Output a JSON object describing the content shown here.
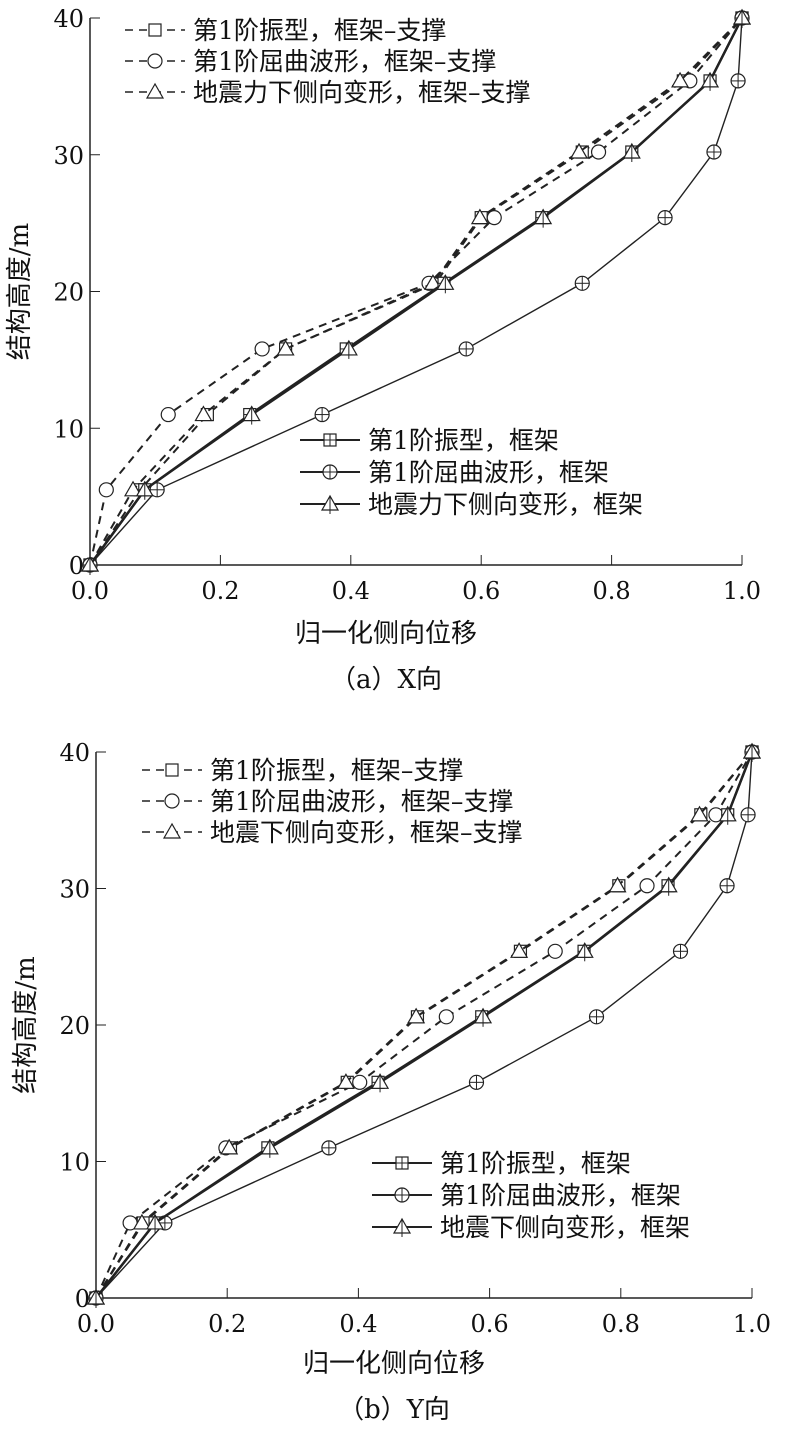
{
  "chart_data": [
    {
      "type": "line",
      "caption": "（a）X向",
      "xlabel": "归一化侧向位移",
      "ylabel": "结构高度/m",
      "xlim": [
        0,
        1
      ],
      "ylim": [
        0,
        40
      ],
      "xticks": [
        "0.0",
        "0.2",
        "0.4",
        "0.6",
        "0.8",
        "1.0"
      ],
      "yticks": [
        "0",
        "10",
        "20",
        "30",
        "40"
      ],
      "heights": [
        0,
        5.5,
        11,
        15.8,
        20.6,
        25.4,
        30.2,
        35.4,
        40
      ],
      "series": [
        {
          "name": "第1阶振型，框架–支撑",
          "marker": "square",
          "style": "dashed",
          "values": [
            0,
            0.077,
            0.18,
            0.3,
            0.53,
            0.6,
            0.755,
            0.91,
            1
          ]
        },
        {
          "name": "第1阶屈曲波形，框架–支撑",
          "marker": "circle",
          "style": "dashed",
          "values": [
            0,
            0.025,
            0.12,
            0.264,
            0.52,
            0.62,
            0.78,
            0.92,
            1
          ]
        },
        {
          "name": "地震力下侧向变形，框架–支撑",
          "marker": "triangle",
          "style": "dashed",
          "values": [
            0,
            0.066,
            0.174,
            0.3,
            0.526,
            0.598,
            0.75,
            0.905,
            1
          ]
        },
        {
          "name": "第1阶振型，框架",
          "marker": "square",
          "style": "solid",
          "values": [
            0,
            0.084,
            0.245,
            0.393,
            0.543,
            0.693,
            0.831,
            0.951,
            1
          ]
        },
        {
          "name": "第1阶屈曲波形，框架",
          "marker": "circle",
          "style": "solid",
          "values": [
            0,
            0.103,
            0.356,
            0.577,
            0.755,
            0.882,
            0.957,
            0.994,
            1
          ]
        },
        {
          "name": "地震力下侧向变形，框架",
          "marker": "triangle",
          "style": "solid",
          "values": [
            0,
            0.084,
            0.248,
            0.397,
            0.545,
            0.695,
            0.831,
            0.951,
            1
          ]
        }
      ]
    },
    {
      "type": "line",
      "caption": "（b）Y向",
      "xlabel": "归一化侧向位移",
      "ylabel": "结构高度/m",
      "xlim": [
        0,
        1
      ],
      "ylim": [
        0,
        40
      ],
      "xticks": [
        "0.0",
        "0.2",
        "0.4",
        "0.6",
        "0.8",
        "1.0"
      ],
      "yticks": [
        "0",
        "10",
        "20",
        "30",
        "40"
      ],
      "heights": [
        0,
        5.5,
        11,
        15.8,
        20.6,
        25.4,
        30.2,
        35.4,
        40
      ],
      "series": [
        {
          "name": "第1阶振型，框架–支撑",
          "marker": "square",
          "style": "dashed",
          "values": [
            0,
            0.072,
            0.205,
            0.383,
            0.49,
            0.647,
            0.797,
            0.922,
            1
          ]
        },
        {
          "name": "第1阶屈曲波形，框架–支撑",
          "marker": "circle",
          "style": "dashed",
          "values": [
            0,
            0.052,
            0.198,
            0.402,
            0.534,
            0.7,
            0.84,
            0.945,
            1
          ]
        },
        {
          "name": "地震下侧向变形，框架–支撑",
          "marker": "triangle",
          "style": "dashed",
          "values": [
            0,
            0.07,
            0.203,
            0.381,
            0.488,
            0.645,
            0.795,
            0.92,
            1
          ]
        },
        {
          "name": "第1阶振型，框架",
          "marker": "square",
          "style": "solid",
          "values": [
            0,
            0.09,
            0.262,
            0.43,
            0.588,
            0.744,
            0.872,
            0.963,
            1
          ]
        },
        {
          "name": "第1阶屈曲波形，框架",
          "marker": "circle",
          "style": "solid",
          "values": [
            0,
            0.105,
            0.355,
            0.58,
            0.763,
            0.891,
            0.962,
            0.994,
            1
          ]
        },
        {
          "name": "地震下侧向变形，框架",
          "marker": "triangle",
          "style": "solid",
          "values": [
            0,
            0.09,
            0.265,
            0.433,
            0.59,
            0.745,
            0.873,
            0.963,
            1
          ]
        }
      ]
    }
  ]
}
